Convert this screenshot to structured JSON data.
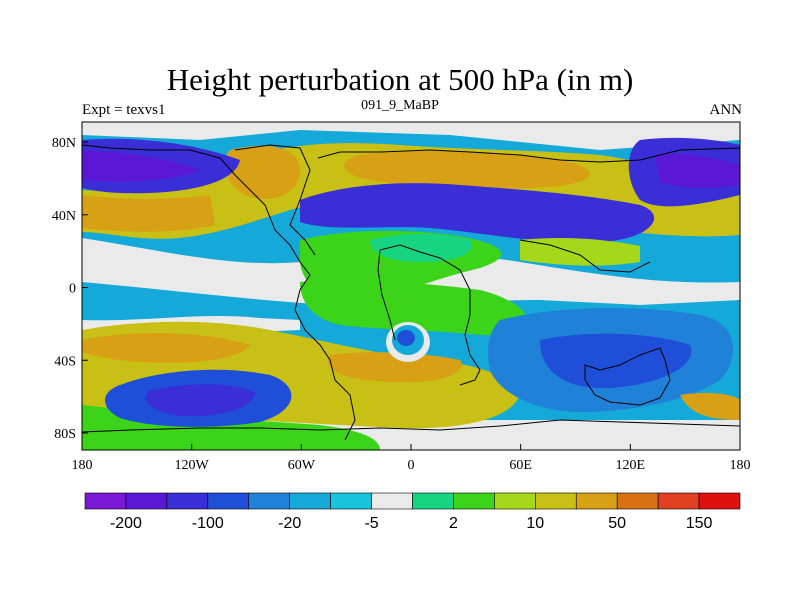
{
  "chart_data": {
    "type": "heatmap",
    "title": "Height perturbation at 500 hPa (in m)",
    "left_label": "Expt = texvs1",
    "center_label": "091_9_MaBP",
    "right_label": "ANN",
    "x_ticks": [
      "180",
      "120W",
      "60W",
      "0",
      "60E",
      "120E",
      "180"
    ],
    "y_ticks": [
      "80N",
      "40N",
      "0",
      "40S",
      "80S"
    ],
    "xlim": [
      -180,
      180
    ],
    "ylim": [
      -90,
      90
    ],
    "colorbar": {
      "labels": [
        "-200",
        "-100",
        "-20",
        "-5",
        "2",
        "10",
        "50",
        "150"
      ],
      "colors": [
        "#7b18d6",
        "#5a18d6",
        "#3a2fd6",
        "#1f4fd8",
        "#1f82d8",
        "#14a9d8",
        "#17c4de",
        "#eaeaea",
        "#16d482",
        "#3cd418",
        "#a5d818",
        "#c8c014",
        "#d8a014",
        "#d87014",
        "#e04020",
        "#e01010"
      ]
    },
    "regions": [
      {
        "name": "blue-north-atlantic",
        "level": 3,
        "lon": -150,
        "lat": 72,
        "rx": 45,
        "ry": 12
      },
      {
        "name": "blue-north-pacific",
        "level": 4,
        "lon": -150,
        "lat": 74,
        "rx": 60,
        "ry": 16
      },
      {
        "name": "blue-asia-high",
        "level": 3,
        "lon": 150,
        "lat": 66,
        "rx": 40,
        "ry": 25
      },
      {
        "name": "blue-europe",
        "level": 3,
        "lon": 70,
        "lat": 38,
        "rx": 75,
        "ry": 12
      },
      {
        "name": "orange-northeast",
        "level": 13,
        "lon": 0,
        "lat": 58,
        "rx": 70,
        "ry": 10
      },
      {
        "name": "orange-greenland",
        "level": 13,
        "lon": -75,
        "lat": 55,
        "rx": 25,
        "ry": 12
      },
      {
        "name": "blue-south-pacific",
        "level": 2,
        "lon": -120,
        "lat": -62,
        "rx": 40,
        "ry": 12
      },
      {
        "name": "blue-indian-ocean",
        "level": 3,
        "lon": 95,
        "lat": -45,
        "rx": 60,
        "ry": 18
      },
      {
        "name": "blue-center-cutoff",
        "level": 2,
        "lon": 0,
        "lat": -30,
        "rx": 7,
        "ry": 8
      }
    ]
  }
}
